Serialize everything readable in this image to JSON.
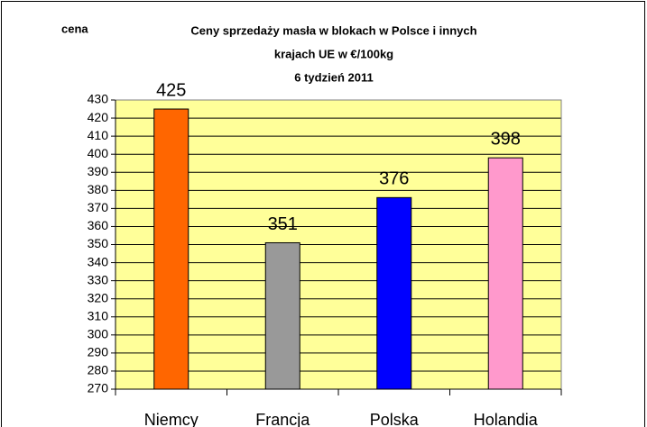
{
  "chart_data": {
    "type": "bar",
    "title": [
      "Ceny sprzedaży masła w blokach w Polsce i  innych",
      "krajach UE w €/100kg",
      "6 tydzień 2011"
    ],
    "y_label": "cena",
    "categories": [
      "Niemcy",
      "Francja",
      "Polska",
      "Holandia"
    ],
    "values": [
      425,
      351,
      376,
      398
    ],
    "colors": [
      "#ff6600",
      "#999999",
      "#0000ff",
      "#ff99cc"
    ],
    "ylim": [
      270,
      430
    ],
    "yticks": [
      270,
      280,
      290,
      300,
      310,
      320,
      330,
      340,
      350,
      360,
      370,
      380,
      390,
      400,
      410,
      420,
      430
    ],
    "grid": true
  }
}
